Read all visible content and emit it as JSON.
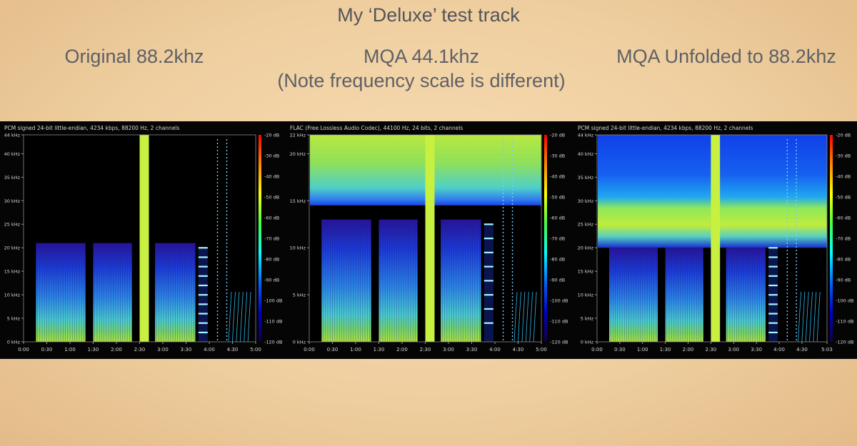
{
  "slide": {
    "title": "My ‘Deluxe’ test track",
    "captions": [
      {
        "line1": "Original 88.2khz",
        "line2": ""
      },
      {
        "line1": "MQA 44.1khz",
        "line2": "(Note frequency scale is different)"
      },
      {
        "line1": "MQA Unfolded to 88.2khz",
        "line2": ""
      }
    ]
  },
  "chart_data": [
    {
      "type": "heatmap",
      "title": "PCM signed 24-bit little-endian, 4234 kbps, 88200 Hz, 2 channels",
      "y_ticks": [
        "44 kHz",
        "40 kHz",
        "35 kHz",
        "30 kHz",
        "25 kHz",
        "20 kHz",
        "15 kHz",
        "10 kHz",
        "5 kHz",
        "0 kHz"
      ],
      "y_tick_values_khz": [
        44,
        40,
        35,
        30,
        25,
        20,
        15,
        10,
        5,
        0
      ],
      "ylim_khz": [
        0,
        44
      ],
      "x_ticks": [
        "0:00",
        "0:30",
        "1:00",
        "1:30",
        "2:00",
        "2:30",
        "3:00",
        "3:30",
        "4:00",
        "4:30",
        "5:00"
      ],
      "x_tick_values_s": [
        0,
        30,
        60,
        90,
        120,
        150,
        180,
        210,
        240,
        270,
        300
      ],
      "xlim_s": [
        0,
        300
      ],
      "colorbar_ticks": [
        "-20 dB",
        "-30 dB",
        "-40 dB",
        "-50 dB",
        "-60 dB",
        "-70 dB",
        "-80 dB",
        "-90 dB",
        "-100 dB",
        "-110 dB",
        "-120 dB"
      ],
      "colorbar_range_db": [
        -120,
        -20
      ],
      "content_cutoff_khz": 21,
      "music_segments_s": [
        [
          16,
          80
        ],
        [
          90,
          140
        ],
        [
          170,
          222
        ]
      ],
      "wideband_marker_s": [
        150,
        162
      ]
    },
    {
      "type": "heatmap",
      "title": "FLAC (Free Lossless Audio Codec), 44100 Hz, 24 bits, 2 channels",
      "y_ticks": [
        "22 kHz",
        "20 kHz",
        "15 kHz",
        "10 kHz",
        "5 kHz",
        "0 kHz"
      ],
      "y_tick_values_khz": [
        22,
        20,
        15,
        10,
        5,
        0
      ],
      "ylim_khz": [
        0,
        22
      ],
      "x_ticks": [
        "0:00",
        "0:30",
        "1:00",
        "1:30",
        "2:00",
        "2:30",
        "3:00",
        "3:30",
        "4:00",
        "4:30",
        "5:00"
      ],
      "x_tick_values_s": [
        0,
        30,
        60,
        90,
        120,
        150,
        180,
        210,
        240,
        270,
        300
      ],
      "xlim_s": [
        0,
        300
      ],
      "colorbar_ticks": [
        "-20 dB",
        "-30 dB",
        "-40 dB",
        "-50 dB",
        "-60 dB",
        "-70 dB",
        "-80 dB",
        "-90 dB",
        "-100 dB",
        "-110 dB",
        "-120 dB"
      ],
      "colorbar_range_db": [
        -120,
        -20
      ],
      "noise_band_khz": [
        14.5,
        22
      ],
      "music_segments_s": [
        [
          16,
          80
        ],
        [
          90,
          140
        ],
        [
          170,
          222
        ]
      ],
      "wideband_marker_s": [
        150,
        162
      ]
    },
    {
      "type": "heatmap",
      "title": "PCM signed 24-bit little-endian, 4234 kbps, 88200 Hz, 2 channels",
      "y_ticks": [
        "44 kHz",
        "40 kHz",
        "35 kHz",
        "30 kHz",
        "25 kHz",
        "20 kHz",
        "15 kHz",
        "10 kHz",
        "5 kHz",
        "0 kHz"
      ],
      "y_tick_values_khz": [
        44,
        40,
        35,
        30,
        25,
        20,
        15,
        10,
        5,
        0
      ],
      "ylim_khz": [
        0,
        44
      ],
      "x_ticks": [
        "0:00",
        "0:30",
        "1:00",
        "1:30",
        "2:00",
        "2:30",
        "3:00",
        "3:30",
        "4:00",
        "4:30",
        "5:03"
      ],
      "x_tick_values_s": [
        0,
        30,
        60,
        90,
        120,
        150,
        180,
        210,
        240,
        270,
        303
      ],
      "xlim_s": [
        0,
        303
      ],
      "colorbar_ticks": [
        "-20 dB",
        "-30 dB",
        "-40 dB",
        "-50 dB",
        "-60 dB",
        "-70 dB",
        "-80 dB",
        "-90 dB",
        "-100 dB",
        "-110 dB",
        "-120 dB"
      ],
      "colorbar_range_db": [
        -120,
        -20
      ],
      "noise_band_khz": [
        20,
        44
      ],
      "hot_band_khz": [
        23,
        31
      ],
      "music_segments_s": [
        [
          16,
          80
        ],
        [
          90,
          140
        ],
        [
          170,
          222
        ]
      ],
      "wideband_marker_s": [
        150,
        162
      ]
    }
  ],
  "colors": {
    "background": "#050505",
    "marker_band": "#c8f040",
    "colorbar": [
      "#ff0000",
      "#ff8800",
      "#ffff00",
      "#44ff44",
      "#00ffff",
      "#0066ff",
      "#0000cc",
      "#120040"
    ]
  }
}
